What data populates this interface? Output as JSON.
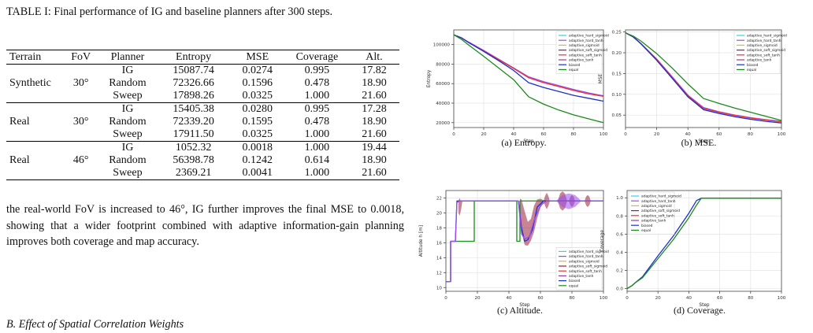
{
  "caption": "TABLE I: Final performance of IG and baseline planners after 300 steps.",
  "table": {
    "headers": [
      "Terrain",
      "FoV",
      "Planner",
      "Entropy",
      "MSE",
      "Coverage",
      "Alt."
    ],
    "groups": [
      {
        "terrain": "Synthetic",
        "fov": "30°",
        "rows": [
          [
            "IG",
            "15087.74",
            "0.0274",
            "0.995",
            "17.82"
          ],
          [
            "Random",
            "72326.66",
            "0.1596",
            "0.478",
            "18.90"
          ],
          [
            "Sweep",
            "17898.26",
            "0.0325",
            "1.000",
            "21.60"
          ]
        ]
      },
      {
        "terrain": "Real",
        "fov": "30°",
        "rows": [
          [
            "IG",
            "15405.38",
            "0.0280",
            "0.995",
            "17.28"
          ],
          [
            "Random",
            "72339.20",
            "0.1595",
            "0.478",
            "18.90"
          ],
          [
            "Sweep",
            "17911.50",
            "0.0325",
            "1.000",
            "21.60"
          ]
        ]
      },
      {
        "terrain": "Real",
        "fov": "46°",
        "rows": [
          [
            "IG",
            "1052.32",
            "0.0018",
            "1.000",
            "19.44"
          ],
          [
            "Random",
            "56398.78",
            "0.1242",
            "0.614",
            "18.90"
          ],
          [
            "Sweep",
            "2369.21",
            "0.0041",
            "1.000",
            "21.60"
          ]
        ]
      }
    ]
  },
  "paragraph": "the real-world FoV is increased to 46°, IG further improves the final MSE to 0.0018, showing that a wider footprint combined with adaptive information-gain planning improves both coverage and map accuracy.",
  "section_heading": "B. Effect of Spatial Correlation Weights",
  "series_colors": {
    "adaptive_hard_sigmoid": "#2fd6e0",
    "adaptive_hard_tanh": "#9a4cf0",
    "adaptive_sigmoid": "#e8b13a",
    "adaptive_soft_sigmoid": "#9b1f3a",
    "adaptive_soft_tanh": "#e83030",
    "adaptive_tanh": "#8a3fa0",
    "biased": "#1a2fd0",
    "equal": "#1a8a1a"
  },
  "chart_data": [
    {
      "type": "line",
      "caption": "(a) Entropy.",
      "xlabel": "Step",
      "ylabel": "Entropy",
      "xlim": [
        0,
        100
      ],
      "ylim": [
        15000,
        115000
      ],
      "xticks": [
        0,
        20,
        40,
        60,
        80,
        100
      ],
      "yticks": [
        20000,
        40000,
        60000,
        80000,
        100000
      ],
      "ytick_labels": [
        "20000",
        "40000",
        "60000",
        "80000",
        "100000"
      ],
      "grid": true,
      "legend": "top-right",
      "legend_entries": [
        "adaptive_hard_sigmoid",
        "adaptive_hard_tanh",
        "adaptive_sigmoid",
        "adaptive_soft_sigmoid",
        "adaptive_soft_tanh",
        "adaptive_tanh",
        "biased",
        "equal"
      ],
      "x": [
        0,
        5,
        10,
        20,
        30,
        40,
        50,
        60,
        70,
        80,
        90,
        100
      ],
      "series": [
        {
          "name": "adaptive_hard_tanh",
          "color_key": "adaptive_hard_tanh",
          "values": [
            110000,
            107000,
            102500,
            94000,
            85000,
            76000,
            67000,
            62000,
            58000,
            54000,
            50500,
            47500
          ]
        },
        {
          "name": "adaptive_soft_tanh",
          "color_key": "adaptive_soft_tanh",
          "values": [
            110000,
            107000,
            102000,
            93500,
            84500,
            75500,
            66000,
            61000,
            57000,
            53000,
            49500,
            47000
          ]
        },
        {
          "name": "biased",
          "color_key": "biased",
          "values": [
            110000,
            107000,
            102000,
            93000,
            83500,
            73500,
            61000,
            56000,
            52000,
            48000,
            45000,
            42000
          ]
        },
        {
          "name": "equal",
          "color_key": "equal",
          "values": [
            110000,
            105500,
            99500,
            88000,
            76000,
            64000,
            46500,
            39000,
            33000,
            28000,
            24000,
            20000
          ]
        }
      ]
    },
    {
      "type": "line",
      "caption": "(b) MSE.",
      "xlabel": "Step",
      "ylabel": "MSE",
      "xlim": [
        0,
        100
      ],
      "ylim": [
        0.02,
        0.255
      ],
      "xticks": [
        0,
        20,
        40,
        60,
        80,
        100
      ],
      "yticks": [
        0.05,
        0.1,
        0.15,
        0.2,
        0.25
      ],
      "ytick_labels": [
        "0.05",
        "0.10",
        "0.15",
        "0.20",
        "0.25"
      ],
      "grid": true,
      "legend": "top-right",
      "legend_entries": [
        "adaptive_hard_sigmoid",
        "adaptive_hard_tanh",
        "adaptive_sigmoid",
        "adaptive_soft_sigmoid",
        "adaptive_soft_tanh",
        "adaptive_tanh",
        "biased",
        "equal"
      ],
      "x": [
        0,
        5,
        10,
        20,
        30,
        40,
        50,
        60,
        70,
        80,
        90,
        100
      ],
      "series": [
        {
          "name": "adaptive_hard_tanh",
          "color_key": "adaptive_hard_tanh",
          "values": [
            0.248,
            0.238,
            0.222,
            0.185,
            0.142,
            0.098,
            0.068,
            0.058,
            0.05,
            0.044,
            0.039,
            0.035
          ]
        },
        {
          "name": "adaptive_soft_tanh",
          "color_key": "adaptive_soft_tanh",
          "values": [
            0.248,
            0.238,
            0.222,
            0.184,
            0.14,
            0.096,
            0.066,
            0.057,
            0.049,
            0.043,
            0.038,
            0.034
          ]
        },
        {
          "name": "biased",
          "color_key": "biased",
          "values": [
            0.248,
            0.238,
            0.221,
            0.182,
            0.138,
            0.094,
            0.063,
            0.054,
            0.046,
            0.04,
            0.035,
            0.031
          ]
        },
        {
          "name": "equal",
          "color_key": "equal",
          "values": [
            0.248,
            0.24,
            0.228,
            0.198,
            0.163,
            0.125,
            0.09,
            0.078,
            0.067,
            0.057,
            0.047,
            0.037
          ]
        }
      ]
    },
    {
      "type": "line",
      "caption": "(c) Altitude.",
      "xlabel": "Step",
      "ylabel": "Altitude h [m]",
      "xlim": [
        0,
        100
      ],
      "ylim": [
        9.5,
        23
      ],
      "xticks": [
        0,
        20,
        40,
        60,
        80,
        100
      ],
      "yticks": [
        10,
        12,
        14,
        16,
        18,
        20,
        22
      ],
      "ytick_labels": [
        "10",
        "12",
        "14",
        "16",
        "18",
        "20",
        "22"
      ],
      "grid": true,
      "legend": "lower-right",
      "legend_entries": [
        "adaptive_hard_sigmoid",
        "adaptive_hard_tanh",
        "adaptive_sigmoid",
        "adaptive_soft_sigmoid",
        "adaptive_soft_tanh",
        "adaptive_tanh",
        "biased",
        "equal"
      ],
      "series": [
        {
          "name": "equal",
          "color_key": "equal",
          "x": [
            0,
            3,
            3,
            7,
            7,
            18,
            18,
            45,
            45,
            47,
            47,
            100
          ],
          "values": [
            10.8,
            10.8,
            16.2,
            16.2,
            16.2,
            16.2,
            21.6,
            21.6,
            16.2,
            16.2,
            21.6,
            21.6
          ]
        },
        {
          "name": "biased",
          "color_key": "biased",
          "x": [
            0,
            3,
            3,
            6,
            7,
            8,
            9,
            10,
            46,
            48,
            50,
            52,
            55,
            58,
            62,
            100
          ],
          "values": [
            10.8,
            10.8,
            16.2,
            16.2,
            21.6,
            21.6,
            21.6,
            21.6,
            21.6,
            18.0,
            16.2,
            16.4,
            17.8,
            20.8,
            21.6,
            21.6
          ]
        },
        {
          "name": "adaptive_hard_tanh",
          "color_key": "adaptive_hard_tanh",
          "x": [
            0,
            3,
            3,
            6,
            7,
            9,
            46,
            48,
            50,
            53,
            56,
            60,
            64,
            100
          ],
          "values": [
            10.8,
            10.8,
            16.2,
            16.2,
            21.4,
            21.6,
            21.6,
            17.2,
            16.5,
            16.8,
            19.0,
            21.0,
            21.6,
            21.6
          ]
        }
      ],
      "bands": [
        {
          "color_key": "adaptive_soft_sigmoid",
          "x": [
            8,
            8.7,
            9.5,
            10.5
          ],
          "low": [
            20.0,
            19.6,
            20.3,
            21.6
          ],
          "high": [
            21.6,
            22.0,
            21.6,
            21.6
          ]
        },
        {
          "color_key": "adaptive_soft_sigmoid",
          "x": [
            47,
            48,
            50,
            52,
            54,
            56,
            58,
            60,
            62
          ],
          "low": [
            21.0,
            17.5,
            15.7,
            15.6,
            16.3,
            17.5,
            19.3,
            20.7,
            21.3
          ],
          "high": [
            21.9,
            21.8,
            20.2,
            18.8,
            19.2,
            21.0,
            21.8,
            21.9,
            21.7
          ]
        },
        {
          "color_key": "adaptive_soft_sigmoid",
          "x": [
            62,
            63,
            64,
            65,
            66
          ],
          "low": [
            21.6,
            20.9,
            20.5,
            20.9,
            21.6
          ],
          "high": [
            21.6,
            22.3,
            22.7,
            22.3,
            21.6
          ]
        },
        {
          "color_key": "adaptive_soft_sigmoid",
          "x": [
            71,
            72.5,
            74,
            75.5,
            77
          ],
          "low": [
            21.6,
            20.6,
            20.3,
            20.6,
            21.6
          ],
          "high": [
            21.6,
            22.6,
            22.9,
            22.6,
            21.6
          ]
        },
        {
          "color_key": "adaptive_soft_sigmoid",
          "x": [
            78,
            79,
            80,
            81,
            82
          ],
          "low": [
            21.6,
            21.0,
            20.8,
            21.0,
            21.6
          ],
          "high": [
            21.6,
            22.2,
            22.4,
            22.2,
            21.6
          ]
        },
        {
          "color_key": "adaptive_soft_sigmoid",
          "x": [
            88,
            89,
            90,
            91,
            92
          ],
          "low": [
            21.6,
            21.0,
            20.8,
            21.0,
            21.6
          ],
          "high": [
            21.6,
            22.2,
            22.4,
            22.2,
            21.6
          ]
        },
        {
          "color_key": "adaptive_hard_tanh",
          "x": [
            70,
            74,
            78,
            82,
            86
          ],
          "low": [
            21.6,
            20.8,
            20.5,
            20.8,
            21.6
          ],
          "high": [
            21.6,
            22.4,
            22.6,
            22.4,
            21.6
          ]
        }
      ]
    },
    {
      "type": "line",
      "caption": "(d) Coverage.",
      "xlabel": "Step",
      "ylabel": "Coverage",
      "xlim": [
        0,
        100
      ],
      "ylim": [
        -0.03,
        1.08
      ],
      "xticks": [
        0,
        20,
        40,
        60,
        80,
        100
      ],
      "yticks": [
        0,
        0.2,
        0.4,
        0.6,
        0.8,
        1.0
      ],
      "ytick_labels": [
        "0.0",
        "0.2",
        "0.4",
        "0.6",
        "0.8",
        "1.0"
      ],
      "grid": true,
      "legend": "top-left",
      "legend_entries": [
        "adaptive_hard_sigmoid",
        "adaptive_hard_tanh",
        "adaptive_sigmoid",
        "adaptive_soft_sigmoid",
        "adaptive_soft_tanh",
        "adaptive_tanh",
        "biased",
        "equal"
      ],
      "x": [
        0,
        3,
        5,
        10,
        20,
        30,
        40,
        45,
        48,
        100
      ],
      "series": [
        {
          "name": "biased",
          "color_key": "biased",
          "values": [
            0.0,
            0.03,
            0.06,
            0.13,
            0.36,
            0.58,
            0.83,
            0.97,
            0.995,
            0.995
          ]
        },
        {
          "name": "equal",
          "color_key": "equal",
          "values": [
            0.0,
            0.03,
            0.06,
            0.12,
            0.33,
            0.54,
            0.78,
            0.92,
            0.995,
            0.995
          ]
        }
      ]
    }
  ]
}
